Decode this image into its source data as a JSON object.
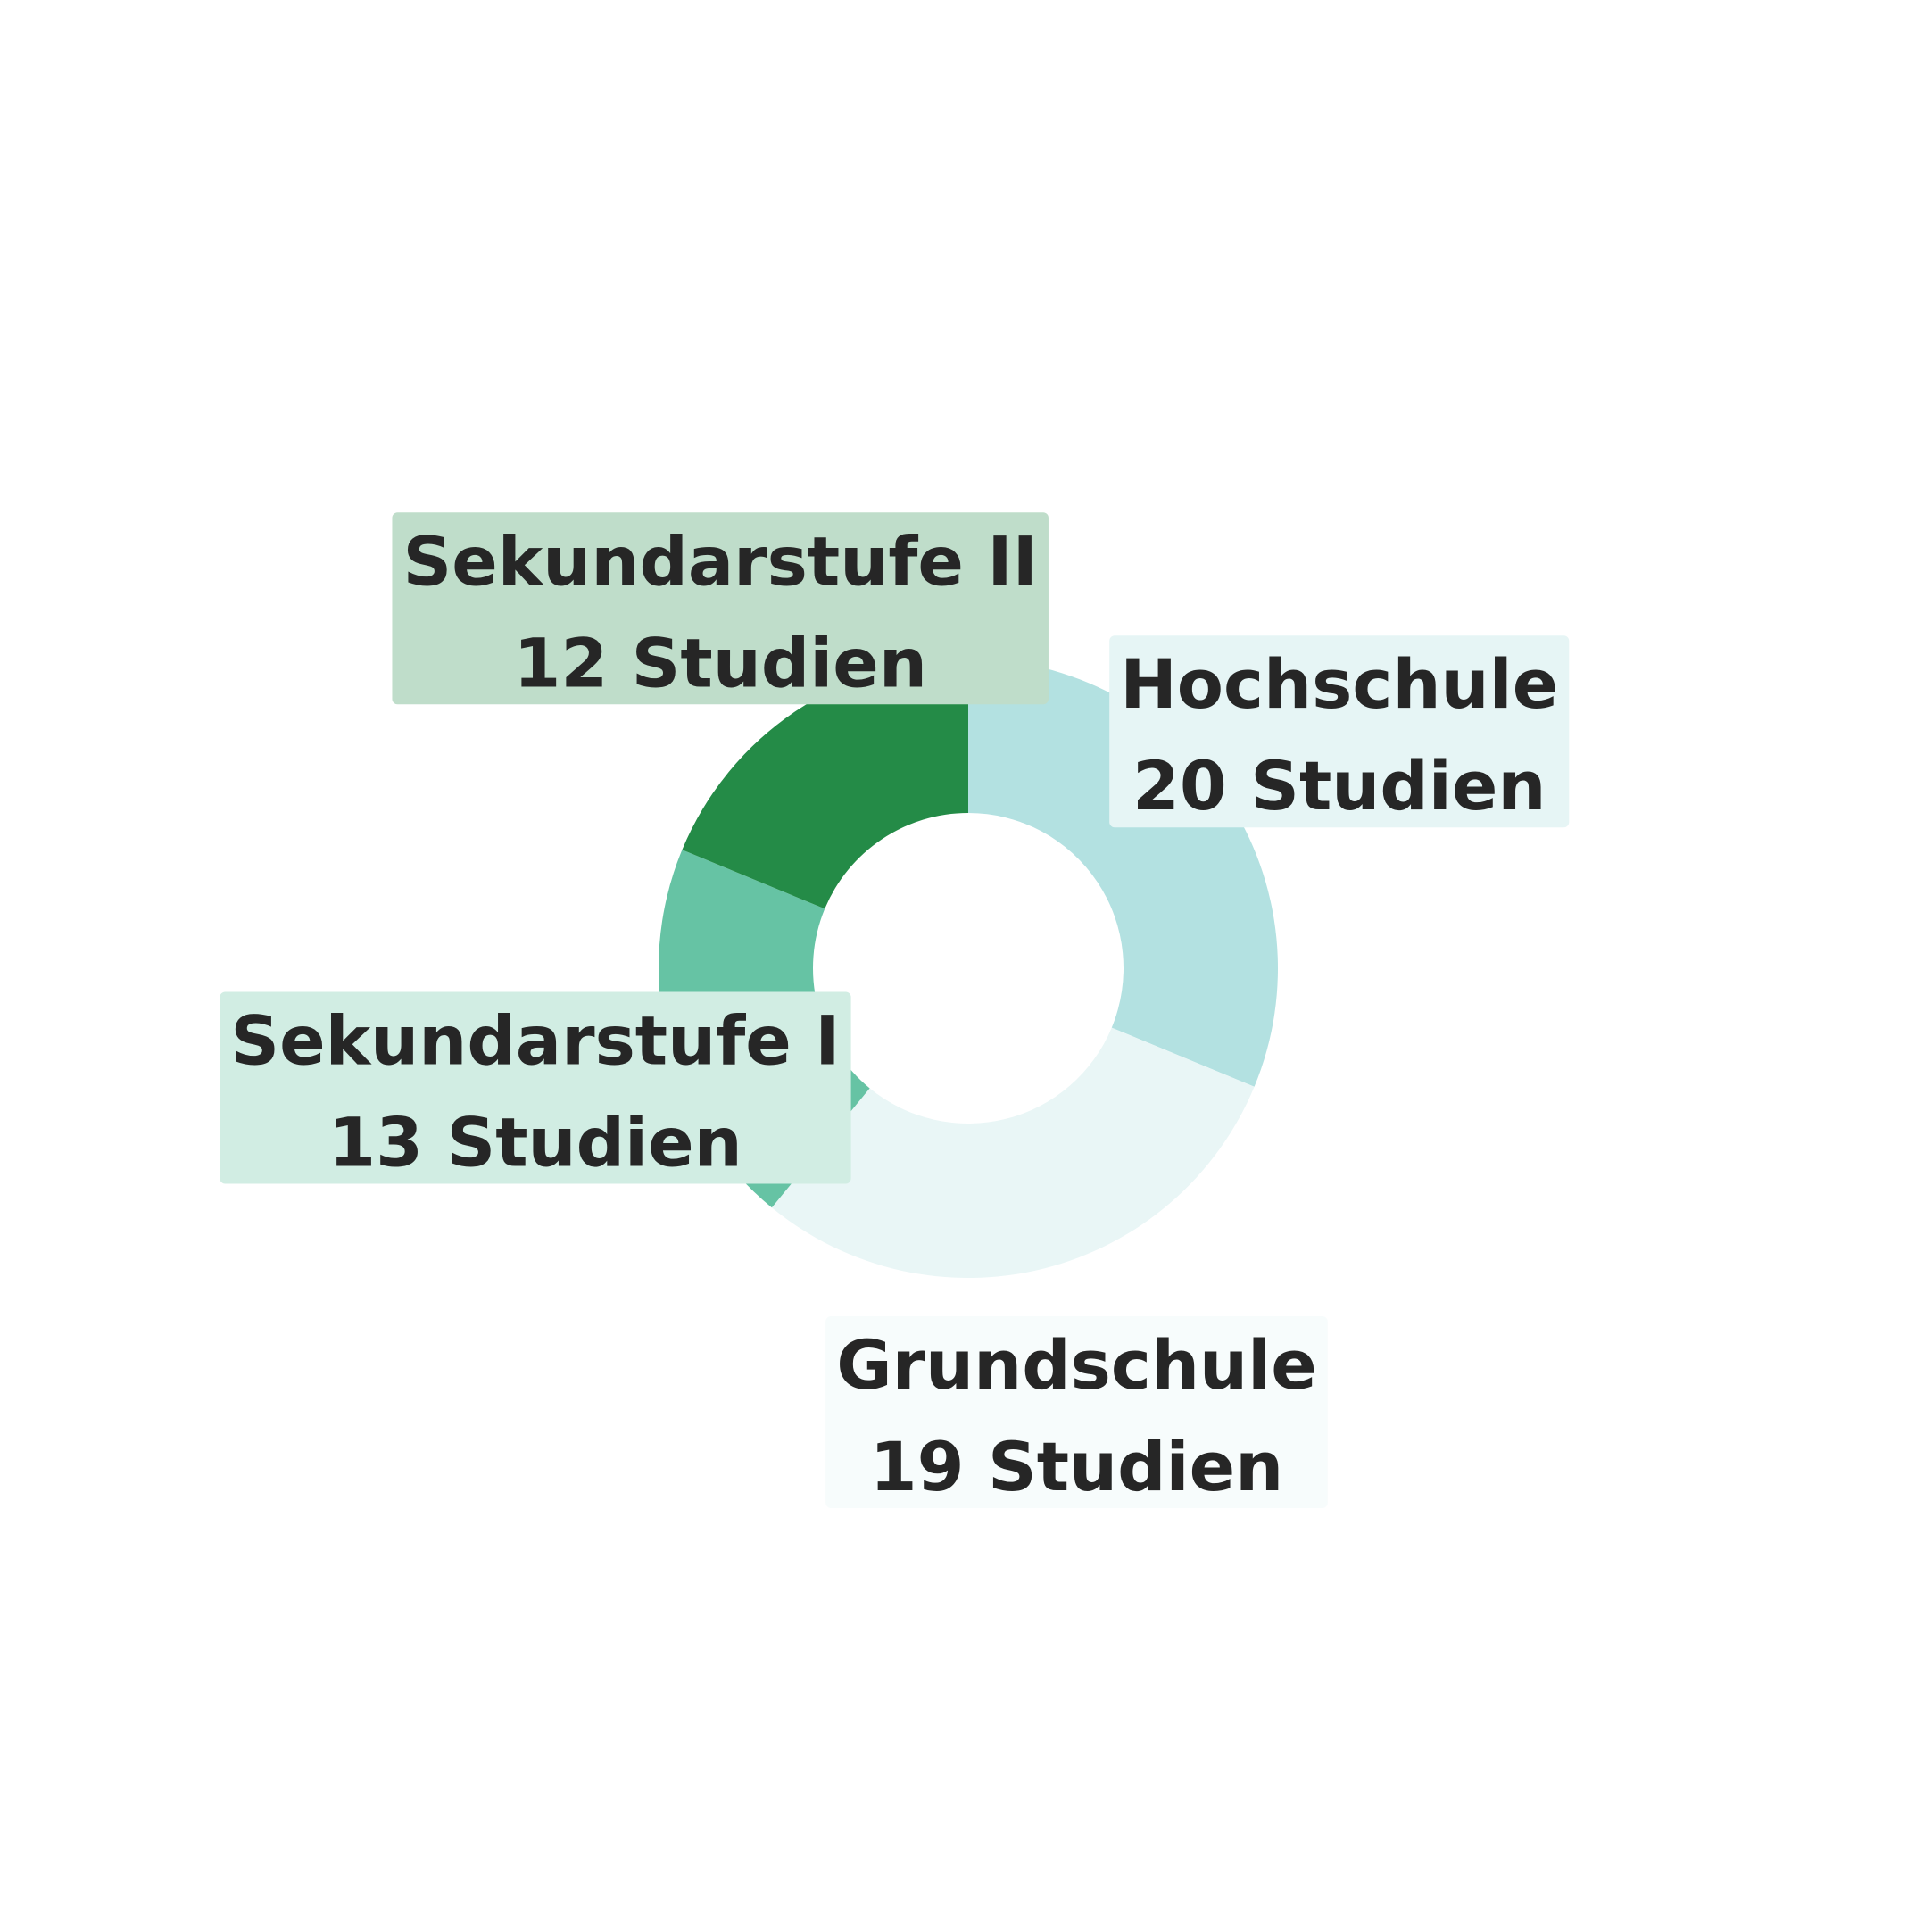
{
  "chart_data": {
    "type": "pie",
    "variant": "donut",
    "unit": "Studien",
    "slices": [
      {
        "label": "Hochschule",
        "value": 20,
        "value_text": "20 Studien",
        "color": "#b3e1e1",
        "label_bg": "#e6f5f5"
      },
      {
        "label": "Grundschule",
        "value": 19,
        "value_text": "19 Studien",
        "color": "#e9f6f6",
        "label_bg": "#f7fcfc"
      },
      {
        "label": "Sekundarstufe I",
        "value": 13,
        "value_text": "13 Studien",
        "color": "#66c3a4",
        "label_bg": "#d1ede3"
      },
      {
        "label": "Sekundarstufe II",
        "value": 12,
        "value_text": "12 Studien",
        "color": "#248b47",
        "label_bg": "#bfddca"
      }
    ],
    "start_angle_deg": 90,
    "direction": "clockwise",
    "legend": false
  }
}
